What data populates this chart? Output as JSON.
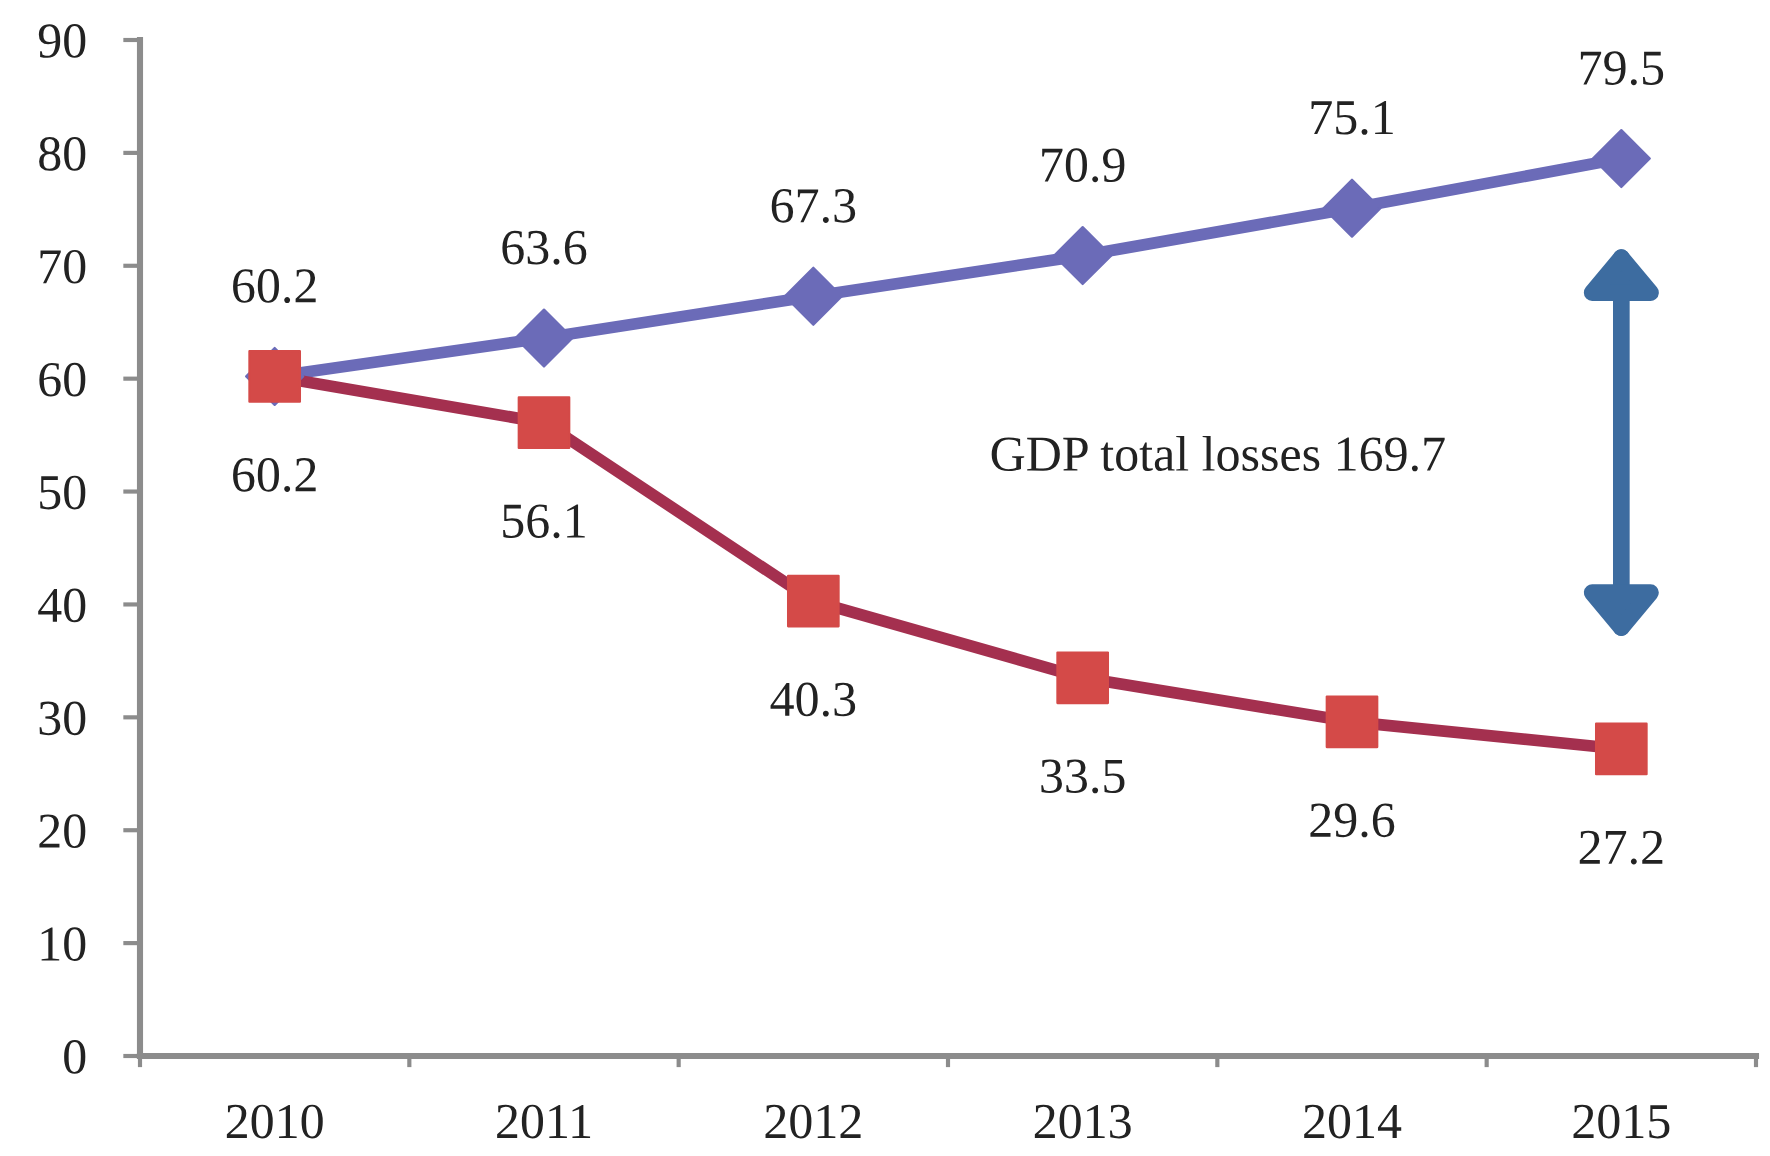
{
  "chart_data": {
    "type": "line",
    "categories": [
      "2010",
      "2011",
      "2012",
      "2013",
      "2014",
      "2015"
    ],
    "series": [
      {
        "color": "#6b6bb8",
        "marker": "diamond",
        "values": [
          60.2,
          63.6,
          67.3,
          70.9,
          75.1,
          79.5
        ]
      },
      {
        "color": "#a4304f",
        "colors": [
          "#d44a48",
          "#d44a48",
          "#d44a48",
          "#d44a48",
          "#d44a48",
          "#d44a48"
        ],
        "marker": "square",
        "values": [
          60.2,
          56.1,
          40.3,
          33.5,
          29.6,
          27.2
        ]
      }
    ],
    "ylim": [
      0,
      90
    ],
    "yticks": [
      0,
      10,
      20,
      30,
      40,
      50,
      60,
      70,
      80,
      90
    ],
    "data_labels": true,
    "line_style": "solid",
    "annotations": [
      "GDP total losses 169.7"
    ]
  }
}
